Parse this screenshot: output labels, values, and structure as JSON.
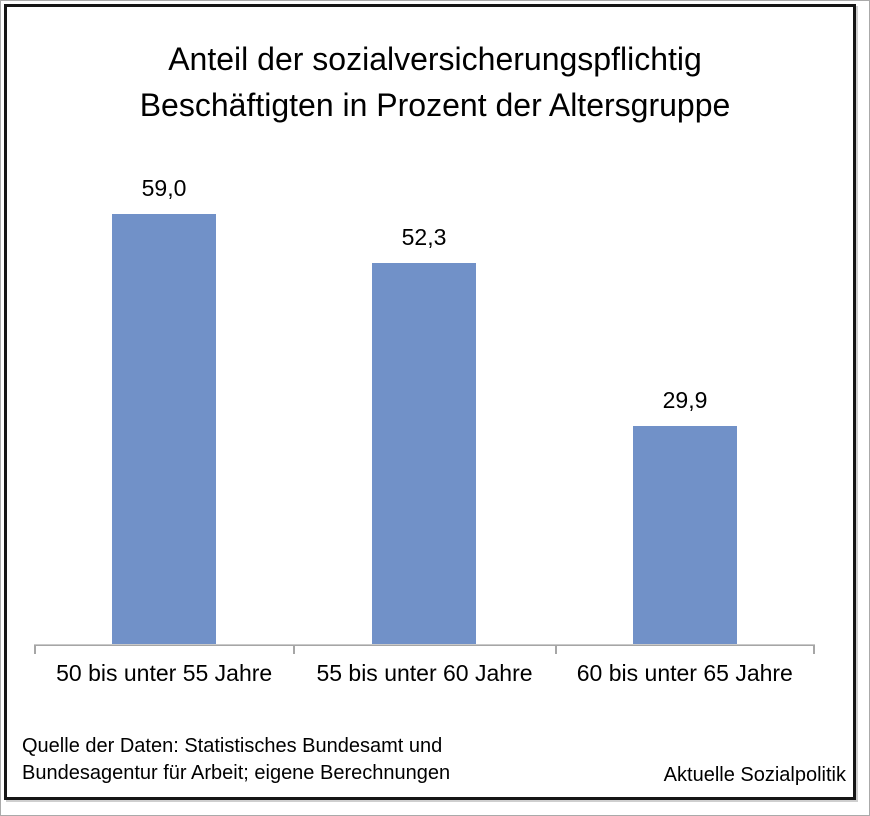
{
  "header": {
    "title_line1": "Anteil der sozialversicherungspflichtig",
    "title_line2": "Beschäftigten in Prozent der Altersgruppe"
  },
  "chart_data": {
    "type": "bar",
    "title": "Anteil der sozialversicherungspflichtig Beschäftigten in Prozent der Altersgruppe",
    "categories": [
      "50 bis unter 55 Jahre",
      "55 bis unter 60 Jahre",
      "60 bis unter 65 Jahre"
    ],
    "values": [
      59.0,
      52.3,
      29.9
    ],
    "value_labels": [
      "59,0",
      "52,3",
      "29,9"
    ],
    "xlabel": "",
    "ylabel": "",
    "ylim": [
      0,
      66
    ],
    "grid": false,
    "legend": "none",
    "bar_color": "#7191c8",
    "axis_color": "#a6a6a6"
  },
  "footer": {
    "source_line1": "Quelle der Daten: Statistisches Bundesamt und",
    "source_line2": "Bundesagentur für Arbeit; eigene Berechnungen",
    "credit": "Aktuelle Sozialpolitik"
  }
}
